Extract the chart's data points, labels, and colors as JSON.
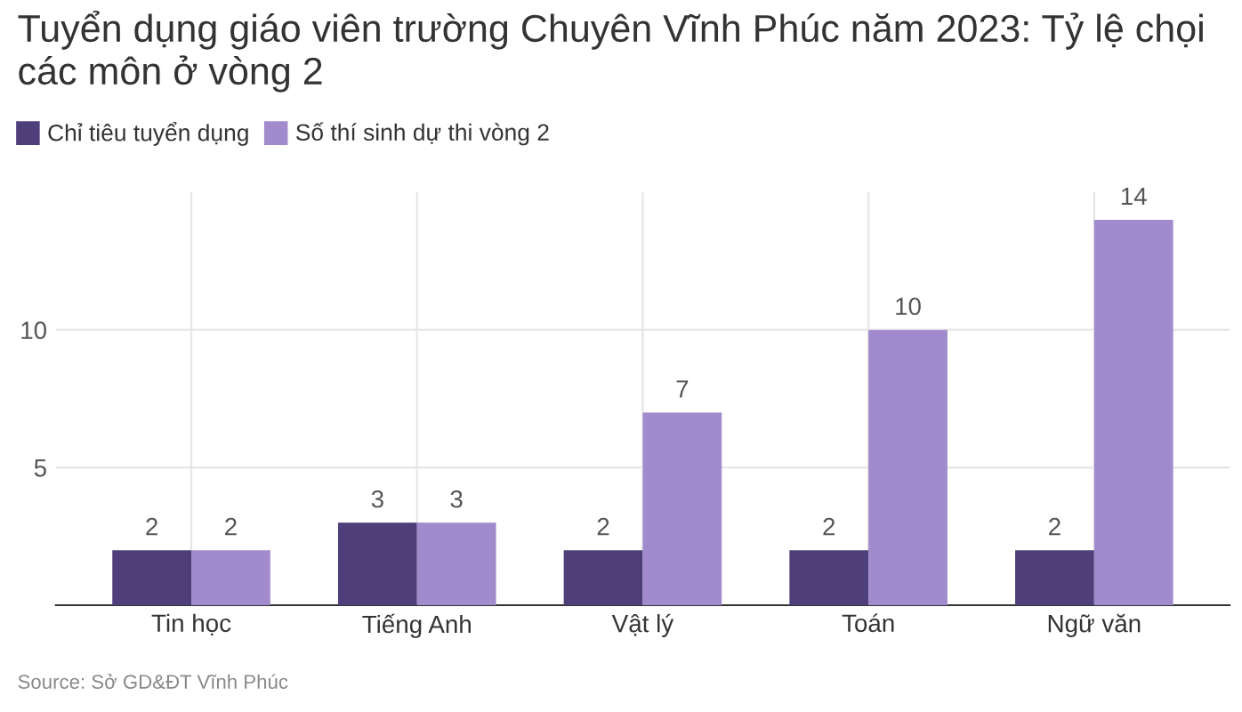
{
  "chart_data": {
    "type": "bar",
    "title": "Tuyển dụng giáo viên trường Chuyên Vĩnh Phúc năm 2023: Tỷ lệ chọi các môn ở vòng 2",
    "categories": [
      "Tin học",
      "Tiếng Anh",
      "Vật lý",
      "Toán",
      "Ngữ văn"
    ],
    "series": [
      {
        "name": "Chỉ tiêu tuyển dụng",
        "color": "#4e3f7a",
        "values": [
          2,
          3,
          2,
          2,
          2
        ]
      },
      {
        "name": "Số thí sinh dự thi vòng 2",
        "color": "#a18bcc",
        "values": [
          2,
          3,
          7,
          10,
          14
        ]
      }
    ],
    "ylim": [
      0,
      15
    ],
    "yticks": [
      5,
      10
    ],
    "grid": true,
    "legend": "top left",
    "data_labels": true,
    "annotations": [
      "Source: Sở GD&ĐT Vĩnh Phúc"
    ]
  }
}
